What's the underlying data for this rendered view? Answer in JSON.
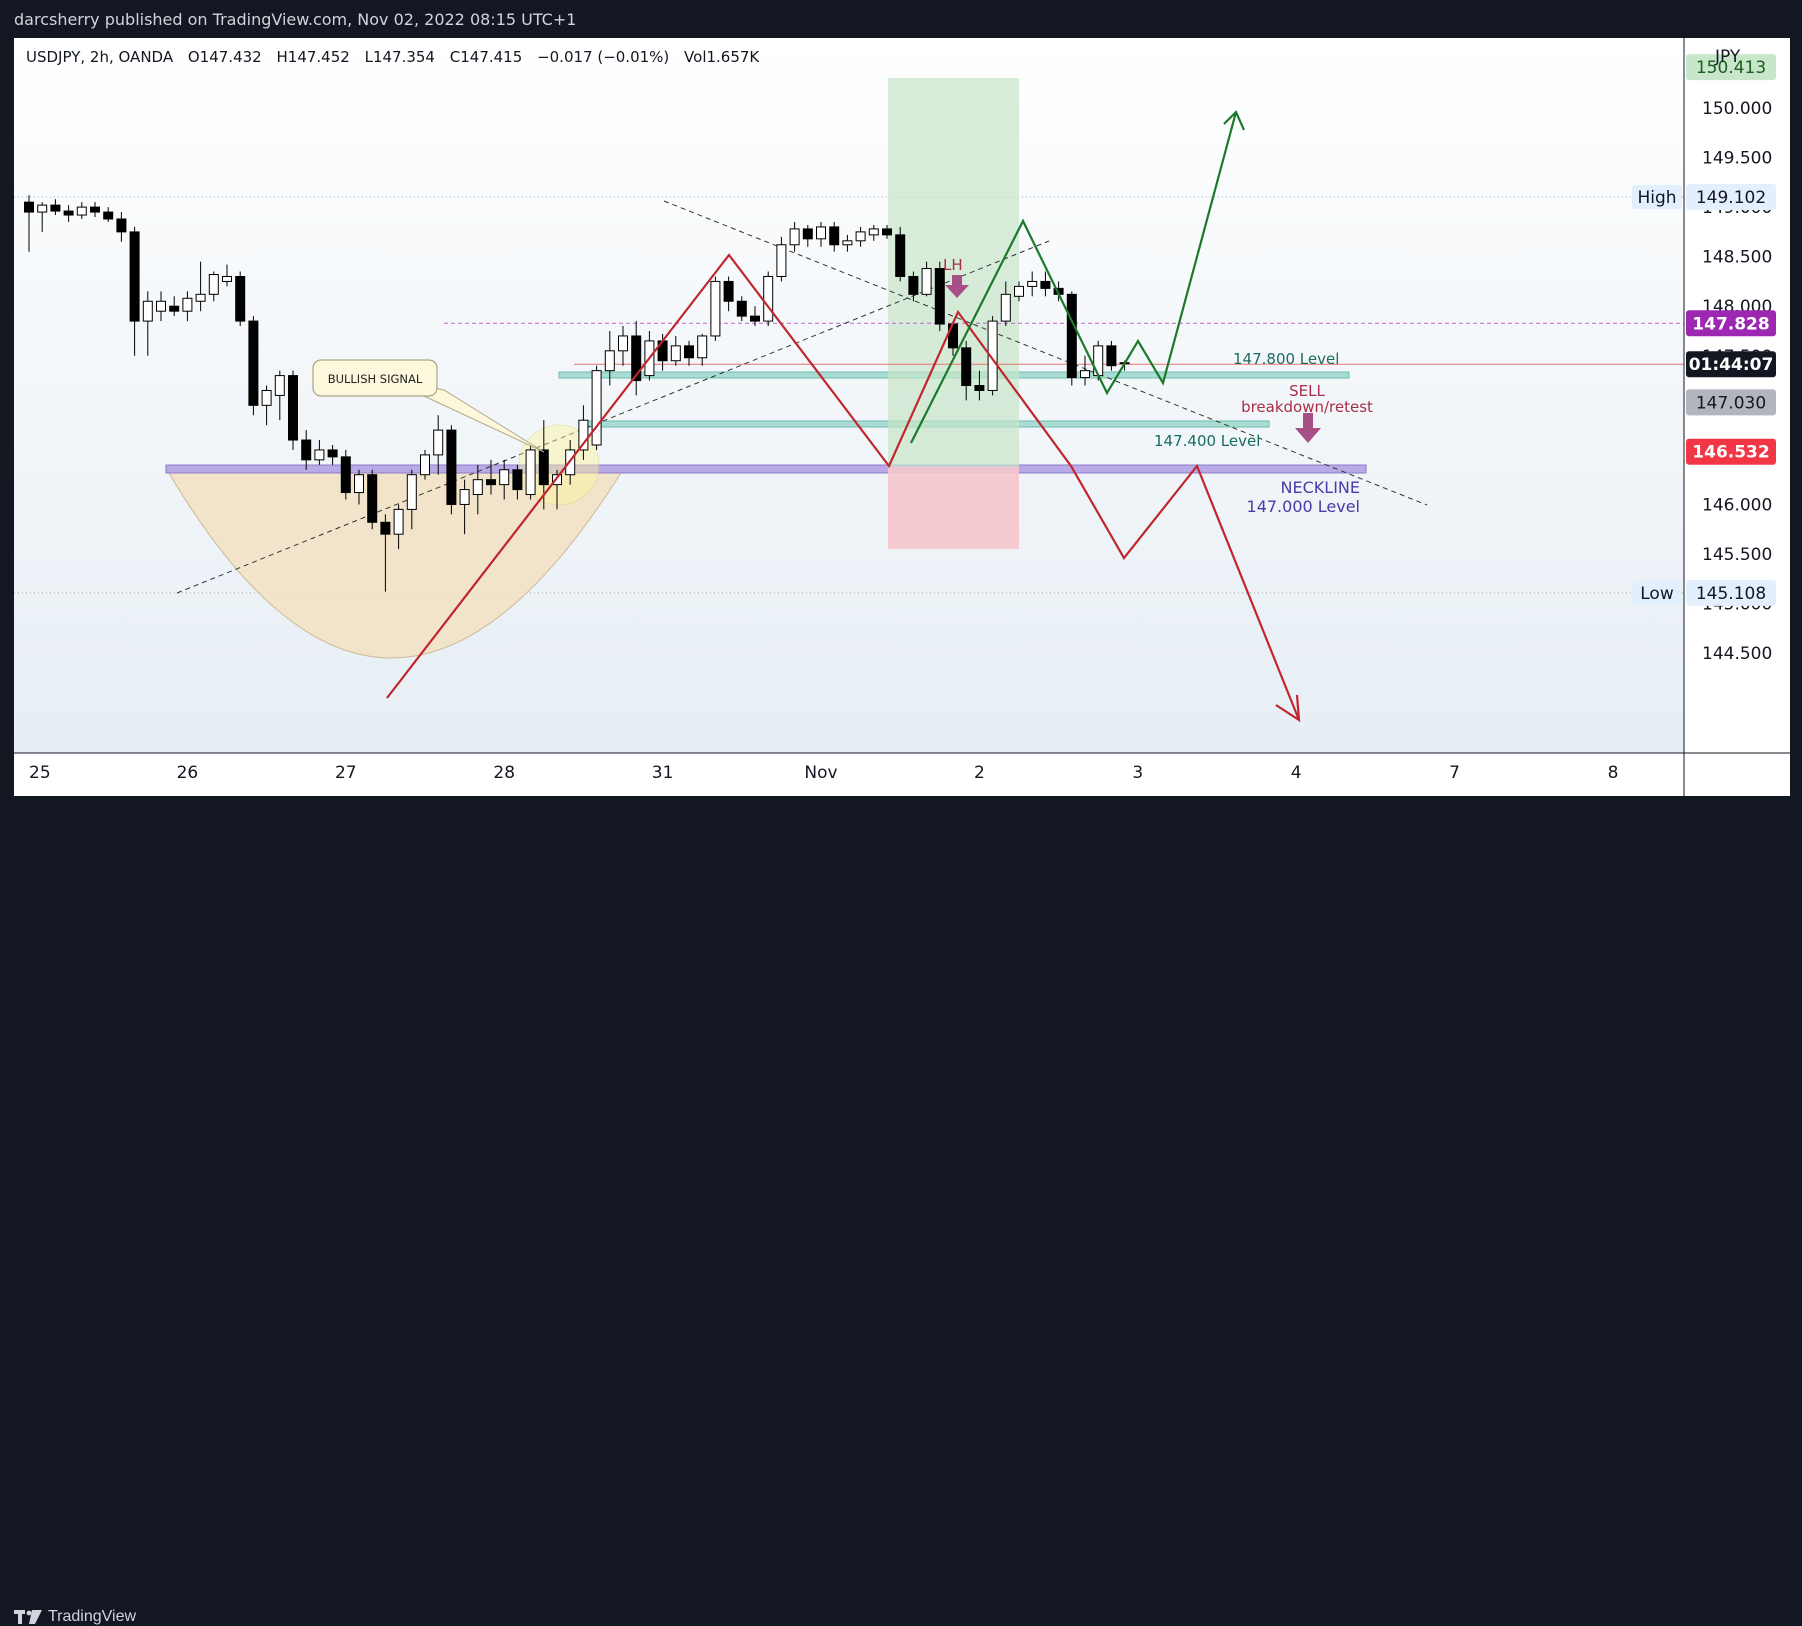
{
  "header": {
    "published": "darcsherry published on TradingView.com, Nov 02, 2022 08:15 UTC+1"
  },
  "footer": {
    "brand": "TradingView"
  },
  "chart_data": {
    "type": "candlestick",
    "symbol": "USDJPY",
    "interval": "2h",
    "exchange": "OANDA",
    "ohlc": {
      "open": "O147.432",
      "high": "H147.452",
      "low": "L147.354",
      "close": "C147.415",
      "change": "−0.017 (−0.01%)",
      "volume": "Vol1.657K"
    },
    "currency": "JPY",
    "ylim": [
      144.4,
      150.7
    ],
    "y_ticks": [
      "150.000",
      "149.500",
      "148.500",
      "148.000",
      "147.500",
      "146.000",
      "145.500",
      "144.500"
    ],
    "partial_tick_labels": [
      {
        "text": "149.000",
        "value": 149.0
      },
      {
        "text": "145.000",
        "value": 145.0
      }
    ],
    "x_ticks": [
      {
        "label": "25",
        "index": 0
      },
      {
        "label": "26",
        "index": 12
      },
      {
        "label": "27",
        "index": 24
      },
      {
        "label": "28",
        "index": 36
      },
      {
        "label": "31",
        "index": 48
      },
      {
        "label": "Nov",
        "index": 60
      },
      {
        "label": "2",
        "index": 72
      },
      {
        "label": "3",
        "index": 84
      },
      {
        "label": "4",
        "index": 96
      },
      {
        "label": "7",
        "index": 108
      },
      {
        "label": "8",
        "index": 120
      }
    ],
    "price_badges": [
      {
        "text": "150.413",
        "value": 150.413,
        "bg": "#c8e6c9",
        "fg": "#1b5e20"
      },
      {
        "text": "149.102",
        "value": 149.102,
        "bg": "#e3effd",
        "fg": "#131722",
        "tag": "High"
      },
      {
        "text": "147.828",
        "value": 147.828,
        "bg": "#9c27b0",
        "fg": "#ffffff"
      },
      {
        "text": "01:44:07",
        "value": 147.415,
        "bg": "#131722",
        "fg": "#ffffff"
      },
      {
        "text": "147.030",
        "value": 147.03,
        "bg": "#b2b5be",
        "fg": "#131722"
      },
      {
        "text": "146.532",
        "value": 146.532,
        "bg": "#f23645",
        "fg": "#ffffff"
      },
      {
        "text": "145.108",
        "value": 145.108,
        "bg": "#e3effd",
        "fg": "#131722",
        "tag": "Low"
      }
    ],
    "high_value": 149.102,
    "low_value": 145.108,
    "candles": [
      {
        "o": 149.05,
        "h": 149.12,
        "l": 148.55,
        "c": 148.95
      },
      {
        "o": 148.95,
        "h": 149.05,
        "l": 148.75,
        "c": 149.02
      },
      {
        "o": 149.02,
        "h": 149.08,
        "l": 148.92,
        "c": 148.96
      },
      {
        "o": 148.96,
        "h": 149.02,
        "l": 148.85,
        "c": 148.92
      },
      {
        "o": 148.92,
        "h": 149.05,
        "l": 148.88,
        "c": 149.0
      },
      {
        "o": 149.0,
        "h": 149.05,
        "l": 148.9,
        "c": 148.95
      },
      {
        "o": 148.95,
        "h": 149.0,
        "l": 148.85,
        "c": 148.88
      },
      {
        "o": 148.88,
        "h": 148.95,
        "l": 148.65,
        "c": 148.75
      },
      {
        "o": 148.75,
        "h": 148.8,
        "l": 147.5,
        "c": 147.85
      },
      {
        "o": 147.85,
        "h": 148.15,
        "l": 147.5,
        "c": 148.05
      },
      {
        "o": 147.95,
        "h": 148.15,
        "l": 147.85,
        "c": 148.05
      },
      {
        "o": 148.0,
        "h": 148.1,
        "l": 147.9,
        "c": 147.95
      },
      {
        "o": 147.95,
        "h": 148.15,
        "l": 147.85,
        "c": 148.08
      },
      {
        "o": 148.05,
        "h": 148.45,
        "l": 147.95,
        "c": 148.12
      },
      {
        "o": 148.12,
        "h": 148.35,
        "l": 148.05,
        "c": 148.32
      },
      {
        "o": 148.25,
        "h": 148.42,
        "l": 148.2,
        "c": 148.3
      },
      {
        "o": 148.3,
        "h": 148.35,
        "l": 147.8,
        "c": 147.85
      },
      {
        "o": 147.85,
        "h": 147.9,
        "l": 146.9,
        "c": 147.0
      },
      {
        "o": 147.0,
        "h": 147.2,
        "l": 146.8,
        "c": 147.15
      },
      {
        "o": 147.1,
        "h": 147.35,
        "l": 146.85,
        "c": 147.3
      },
      {
        "o": 147.3,
        "h": 147.35,
        "l": 146.55,
        "c": 146.65
      },
      {
        "o": 146.65,
        "h": 146.75,
        "l": 146.35,
        "c": 146.45
      },
      {
        "o": 146.45,
        "h": 146.65,
        "l": 146.4,
        "c": 146.55
      },
      {
        "o": 146.55,
        "h": 146.6,
        "l": 146.4,
        "c": 146.48
      },
      {
        "o": 146.48,
        "h": 146.55,
        "l": 146.05,
        "c": 146.12
      },
      {
        "o": 146.12,
        "h": 146.35,
        "l": 146.0,
        "c": 146.3
      },
      {
        "o": 146.3,
        "h": 146.35,
        "l": 145.75,
        "c": 145.82
      },
      {
        "o": 145.82,
        "h": 145.9,
        "l": 145.12,
        "c": 145.7
      },
      {
        "o": 145.7,
        "h": 146.0,
        "l": 145.55,
        "c": 145.95
      },
      {
        "o": 145.95,
        "h": 146.35,
        "l": 145.75,
        "c": 146.3
      },
      {
        "o": 146.3,
        "h": 146.55,
        "l": 146.25,
        "c": 146.5
      },
      {
        "o": 146.5,
        "h": 146.9,
        "l": 146.3,
        "c": 146.75
      },
      {
        "o": 146.75,
        "h": 146.8,
        "l": 145.9,
        "c": 146.0
      },
      {
        "o": 146.0,
        "h": 146.25,
        "l": 145.7,
        "c": 146.15
      },
      {
        "o": 146.1,
        "h": 146.4,
        "l": 145.9,
        "c": 146.25
      },
      {
        "o": 146.25,
        "h": 146.45,
        "l": 146.1,
        "c": 146.2
      },
      {
        "o": 146.2,
        "h": 146.45,
        "l": 146.05,
        "c": 146.35
      },
      {
        "o": 146.35,
        "h": 146.4,
        "l": 146.05,
        "c": 146.15
      },
      {
        "o": 146.1,
        "h": 146.6,
        "l": 146.05,
        "c": 146.55
      },
      {
        "o": 146.55,
        "h": 146.85,
        "l": 145.95,
        "c": 146.2
      },
      {
        "o": 146.2,
        "h": 146.35,
        "l": 145.95,
        "c": 146.3
      },
      {
        "o": 146.3,
        "h": 146.65,
        "l": 146.2,
        "c": 146.55
      },
      {
        "o": 146.55,
        "h": 147.0,
        "l": 146.45,
        "c": 146.85
      },
      {
        "o": 146.6,
        "h": 147.4,
        "l": 146.55,
        "c": 147.35
      },
      {
        "o": 147.35,
        "h": 147.75,
        "l": 147.2,
        "c": 147.55
      },
      {
        "o": 147.55,
        "h": 147.8,
        "l": 147.4,
        "c": 147.7
      },
      {
        "o": 147.7,
        "h": 147.85,
        "l": 147.1,
        "c": 147.25
      },
      {
        "o": 147.3,
        "h": 147.75,
        "l": 147.25,
        "c": 147.65
      },
      {
        "o": 147.65,
        "h": 147.72,
        "l": 147.35,
        "c": 147.45
      },
      {
        "o": 147.45,
        "h": 147.7,
        "l": 147.4,
        "c": 147.6
      },
      {
        "o": 147.6,
        "h": 147.65,
        "l": 147.4,
        "c": 147.48
      },
      {
        "o": 147.48,
        "h": 147.72,
        "l": 147.4,
        "c": 147.7
      },
      {
        "o": 147.7,
        "h": 148.3,
        "l": 147.65,
        "c": 148.25
      },
      {
        "o": 148.25,
        "h": 148.3,
        "l": 147.95,
        "c": 148.05
      },
      {
        "o": 148.05,
        "h": 148.1,
        "l": 147.85,
        "c": 147.9
      },
      {
        "o": 147.9,
        "h": 148.0,
        "l": 147.8,
        "c": 147.85
      },
      {
        "o": 147.85,
        "h": 148.35,
        "l": 147.8,
        "c": 148.3
      },
      {
        "o": 148.3,
        "h": 148.7,
        "l": 148.25,
        "c": 148.62
      },
      {
        "o": 148.62,
        "h": 148.85,
        "l": 148.55,
        "c": 148.78
      },
      {
        "o": 148.78,
        "h": 148.82,
        "l": 148.6,
        "c": 148.68
      },
      {
        "o": 148.68,
        "h": 148.85,
        "l": 148.6,
        "c": 148.8
      },
      {
        "o": 148.8,
        "h": 148.85,
        "l": 148.55,
        "c": 148.62
      },
      {
        "o": 148.62,
        "h": 148.72,
        "l": 148.55,
        "c": 148.66
      },
      {
        "o": 148.66,
        "h": 148.8,
        "l": 148.6,
        "c": 148.75
      },
      {
        "o": 148.72,
        "h": 148.82,
        "l": 148.66,
        "c": 148.78
      },
      {
        "o": 148.78,
        "h": 148.82,
        "l": 148.68,
        "c": 148.72
      },
      {
        "o": 148.72,
        "h": 148.8,
        "l": 148.25,
        "c": 148.3
      },
      {
        "o": 148.3,
        "h": 148.35,
        "l": 148.05,
        "c": 148.12
      },
      {
        "o": 148.12,
        "h": 148.45,
        "l": 148.1,
        "c": 148.38
      },
      {
        "o": 148.38,
        "h": 148.45,
        "l": 147.75,
        "c": 147.82
      },
      {
        "o": 147.82,
        "h": 147.85,
        "l": 147.5,
        "c": 147.58
      },
      {
        "o": 147.58,
        "h": 147.65,
        "l": 147.05,
        "c": 147.2
      },
      {
        "o": 147.2,
        "h": 147.35,
        "l": 147.05,
        "c": 147.15
      },
      {
        "o": 147.15,
        "h": 147.9,
        "l": 147.1,
        "c": 147.85
      },
      {
        "o": 147.85,
        "h": 148.25,
        "l": 147.8,
        "c": 148.12
      },
      {
        "o": 148.1,
        "h": 148.25,
        "l": 148.05,
        "c": 148.2
      },
      {
        "o": 148.2,
        "h": 148.35,
        "l": 148.1,
        "c": 148.25
      },
      {
        "o": 148.25,
        "h": 148.35,
        "l": 148.1,
        "c": 148.18
      },
      {
        "o": 148.18,
        "h": 148.25,
        "l": 148.05,
        "c": 148.12
      },
      {
        "o": 148.12,
        "h": 148.15,
        "l": 147.2,
        "c": 147.28
      },
      {
        "o": 147.28,
        "h": 147.5,
        "l": 147.2,
        "c": 147.35
      },
      {
        "o": 147.3,
        "h": 147.65,
        "l": 147.25,
        "c": 147.6
      },
      {
        "o": 147.6,
        "h": 147.65,
        "l": 147.35,
        "c": 147.4
      },
      {
        "o": 147.43,
        "h": 147.45,
        "l": 147.35,
        "c": 147.42
      }
    ],
    "annotations": {
      "bullish_signal": "BULLISH SIGNAL",
      "lh": "LH",
      "level_1478": "147.800 Level",
      "level_1474": "147.400 Level",
      "sell": "SELL",
      "breakdown": "breakdown/retest",
      "neckline": "NECKLINE",
      "neckline_level": "147.000 Level"
    }
  }
}
